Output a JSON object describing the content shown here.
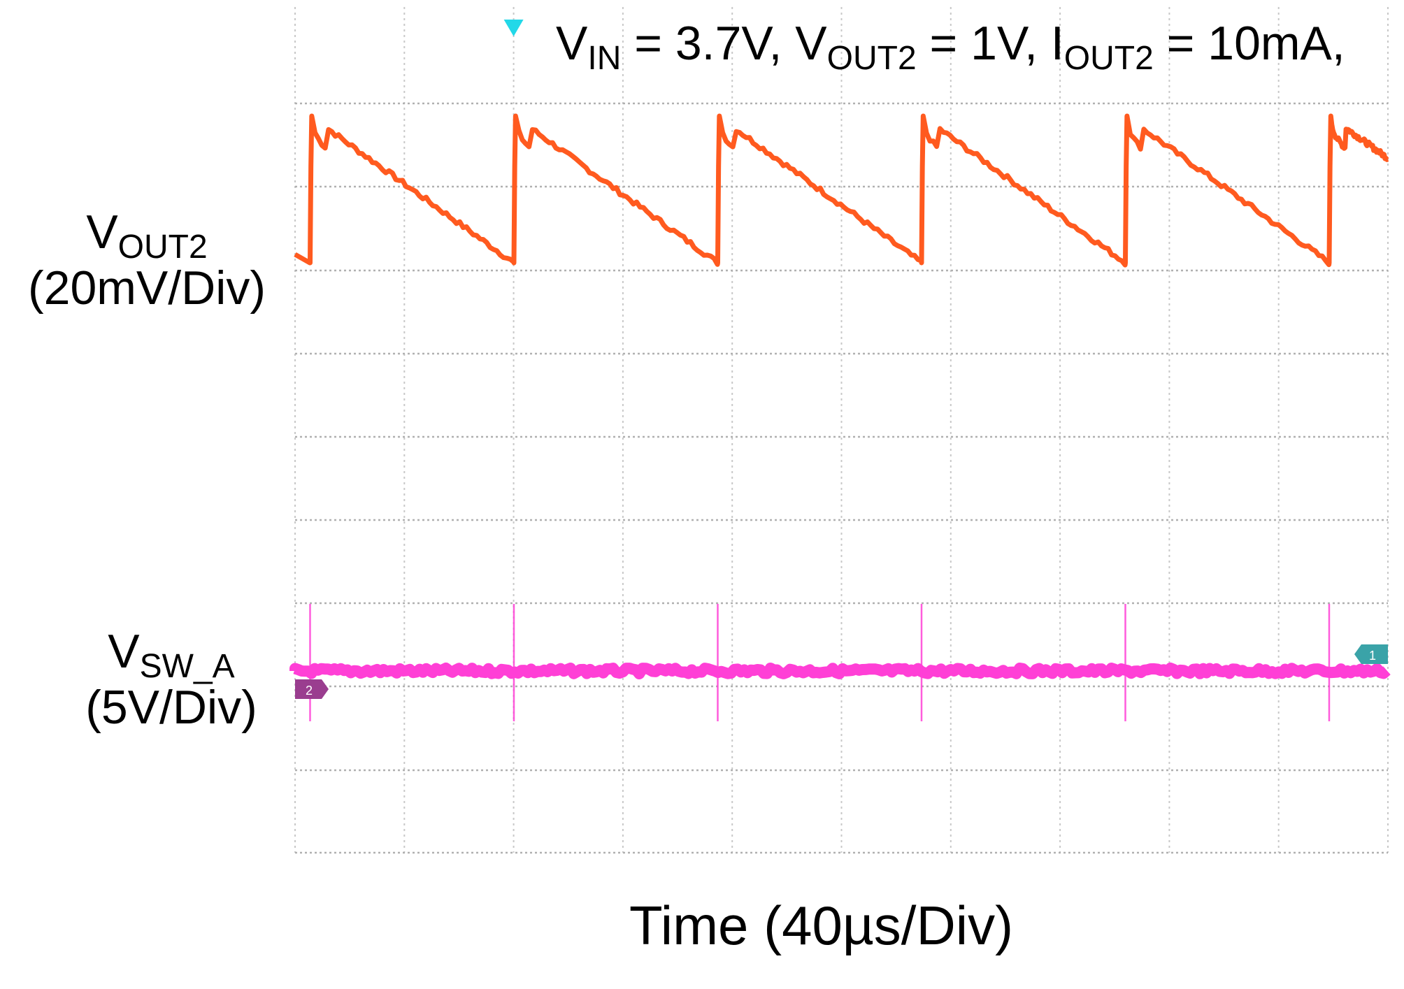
{
  "chart_data": {
    "type": "line",
    "title_parts": [
      {
        "text": "V",
        "sub": "IN"
      },
      {
        "text": " = 3.7V, V",
        "sub": "OUT2"
      },
      {
        "text": " = 1V, I",
        "sub": "OUT2"
      },
      {
        "text": " = 10mA,",
        "sub": ""
      }
    ],
    "xlabel": "Time (40µs/Div)",
    "x_divisions": 10,
    "y_divisions": 9,
    "grid": true,
    "x_unit": "µs",
    "x_per_div": 40,
    "xlim": [
      0,
      400
    ],
    "trigger_time": 80,
    "series": [
      {
        "name": "V_OUT2",
        "label_main": "V",
        "label_sub": "OUT2",
        "label_scale": "(20mV/Div)",
        "scale": "20mV/Div",
        "color": "#ff5a1f",
        "waveform": "sawtooth",
        "period_us": 74.6,
        "first_edge_us": 5.5,
        "peak_offset_mv": 17,
        "trough_offset_mv": -18,
        "ripple_mv": 35
      },
      {
        "name": "V_SW_A",
        "label_main": "V",
        "label_sub": "SW_A",
        "label_scale": "(5V/Div)",
        "scale": "5V/Div",
        "color": "#ff3fd6",
        "waveform": "pulses",
        "period_us": 74.6,
        "first_edge_us": 5.5,
        "baseline_v": 0,
        "spike_pos_v": 4,
        "spike_neg_v": -3
      }
    ],
    "markers": [
      {
        "name": "trigger",
        "color": "#22d8e8"
      },
      {
        "name": "ch1-ref",
        "text": "1",
        "color": "#3aa3a8"
      },
      {
        "name": "ch2-ref",
        "text": "2",
        "color": "#9a3d8f"
      }
    ]
  }
}
